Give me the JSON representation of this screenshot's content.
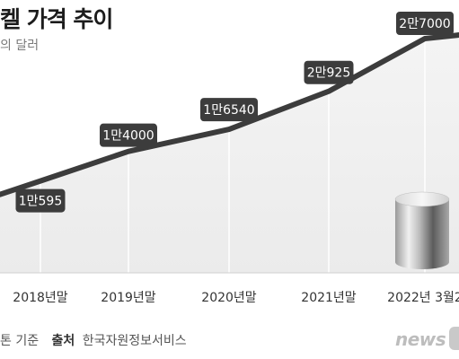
{
  "chart_data": {
    "type": "line",
    "title": "켈 가격 추이",
    "unit_label": "의 달러",
    "categories": [
      "2018년말",
      "2019년말",
      "2020년말",
      "2021년말",
      "2022년 3월2"
    ],
    "values": [
      10595,
      14000,
      16540,
      20925,
      27000
    ],
    "data_labels": [
      "1만595",
      "1만4000",
      "1만6540",
      "2만925",
      "2만7000"
    ],
    "ylim": [
      0,
      30000
    ],
    "grid": false,
    "colors": {
      "line": "#3c3c3c",
      "label_bg": "#3c3c3c",
      "label_text": "#ffffff",
      "area": "#f1f1f1"
    }
  },
  "footer": {
    "basis": "톤 기준",
    "source_label": "출처",
    "source_name": "한국자원정보서비스"
  },
  "logo": {
    "text": "news",
    "icon": "news-logo-icon"
  }
}
